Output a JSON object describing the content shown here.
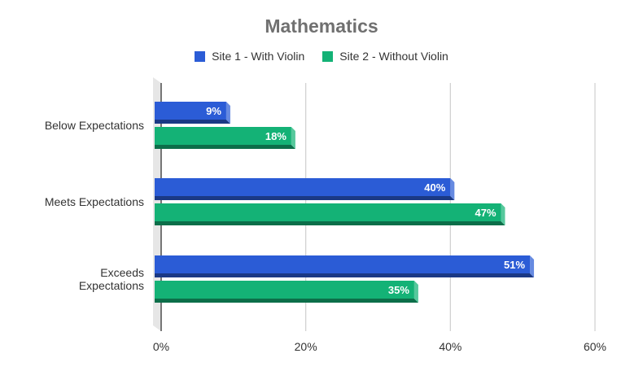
{
  "chart_data": {
    "type": "bar",
    "orientation": "horizontal",
    "title": "Mathematics",
    "categories": [
      "Below Expectations",
      "Meets Expectations",
      "Exceeds Expectations"
    ],
    "series": [
      {
        "name": "Site 1 - With Violin",
        "values": [
          9,
          40,
          51
        ],
        "labels": [
          "9%",
          "40%",
          "51%"
        ],
        "color": "#2b5cd6"
      },
      {
        "name": "Site 2 - Without Violin",
        "values": [
          18,
          47,
          35
        ],
        "labels": [
          "18%",
          "47%",
          "35%"
        ],
        "color": "#14b276"
      }
    ],
    "xlim": [
      0,
      60
    ],
    "x_ticks": [
      "0%",
      "20%",
      "40%",
      "60%"
    ],
    "xlabel": "",
    "ylabel": "",
    "grid": true,
    "legend_position": "top",
    "style": "3d"
  }
}
